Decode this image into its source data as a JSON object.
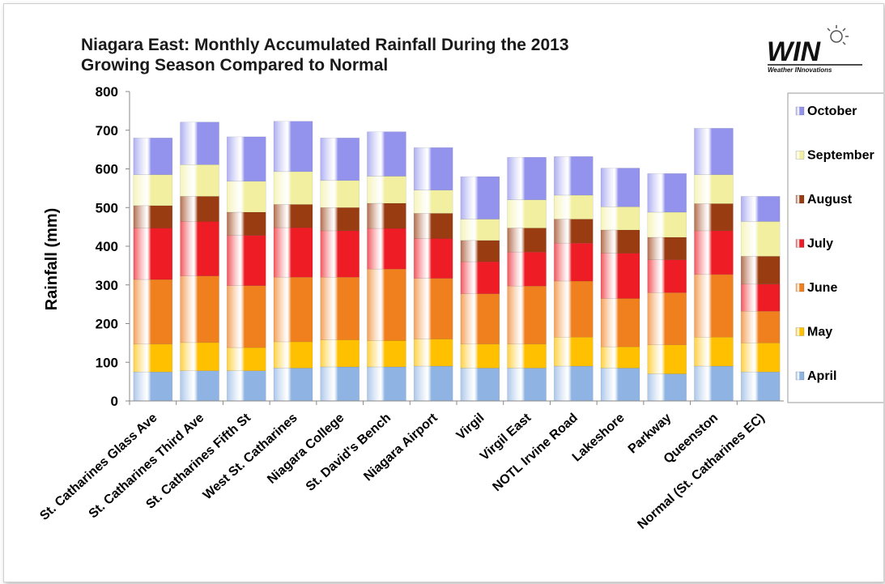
{
  "logo": {
    "name": "WIN",
    "subtitle": "Weather INnovations"
  },
  "chart_data": {
    "type": "bar",
    "stacked": true,
    "title": "Niagara East: Monthly Accumulated Rainfall During the 2013 Growing Season Compared to Normal",
    "title_lines": [
      "Niagara East: Monthly Accumulated Rainfall During the 2013",
      "Growing Season Compared to Normal"
    ],
    "xlabel": "",
    "ylabel": "Rainfall (mm)",
    "ylim": [
      0,
      800
    ],
    "yticks": [
      0,
      100,
      200,
      300,
      400,
      500,
      600,
      700,
      800
    ],
    "grid": false,
    "legend_position": "right",
    "categories": [
      "St. Catharines Glass Ave",
      "St. Catharines Third Ave",
      "St. Catharines Fifth St",
      "West St. Catharines",
      "Niagara College",
      "St. David's Bench",
      "Niagara Airport",
      "Virgil",
      "Virgil East",
      "NOTL Irvine Road",
      "Lakeshore",
      "Parkway",
      "Queenston",
      "Normal (St. Catharines EC)"
    ],
    "series": [
      {
        "name": "April",
        "color": "#8fb4e3",
        "values": [
          75,
          78,
          78,
          85,
          88,
          88,
          90,
          85,
          85,
          90,
          85,
          70,
          90,
          75
        ]
      },
      {
        "name": "May",
        "color": "#ffc000",
        "values": [
          72,
          73,
          60,
          68,
          70,
          68,
          70,
          62,
          62,
          75,
          55,
          75,
          75,
          75
        ]
      },
      {
        "name": "June",
        "color": "#f07f1e",
        "values": [
          167,
          172,
          160,
          167,
          162,
          185,
          157,
          130,
          150,
          145,
          125,
          135,
          162,
          82
        ]
      },
      {
        "name": "July",
        "color": "#ee1c25",
        "values": [
          133,
          141,
          130,
          128,
          120,
          105,
          103,
          83,
          88,
          98,
          117,
          85,
          113,
          70
        ]
      },
      {
        "name": "August",
        "color": "#9a3c12",
        "values": [
          58,
          65,
          60,
          60,
          60,
          65,
          65,
          55,
          62,
          62,
          60,
          58,
          70,
          72
        ]
      },
      {
        "name": "September",
        "color": "#f2f0a0",
        "values": [
          80,
          82,
          80,
          85,
          70,
          70,
          60,
          55,
          73,
          62,
          60,
          65,
          75,
          90
        ]
      },
      {
        "name": "October",
        "color": "#9393ee",
        "values": [
          95,
          110,
          115,
          130,
          110,
          115,
          110,
          110,
          110,
          100,
          100,
          100,
          120,
          65
        ]
      }
    ]
  }
}
